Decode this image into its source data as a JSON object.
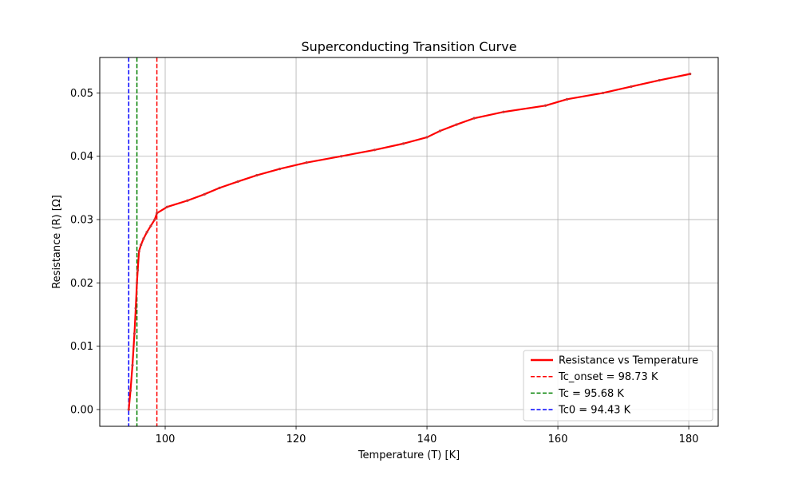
{
  "chart_data": {
    "type": "line",
    "title": "Superconducting Transition Curve",
    "xlabel": "Temperature (T) [K]",
    "ylabel": "Resistance (R) [Ω]",
    "xlim": [
      90,
      184.5
    ],
    "ylim": [
      -0.00265,
      0.0556
    ],
    "xticks": [
      100,
      120,
      140,
      160,
      180
    ],
    "xtick_labels": [
      "100",
      "120",
      "140",
      "160",
      "180"
    ],
    "yticks": [
      0.0,
      0.01,
      0.02,
      0.03,
      0.04,
      0.05
    ],
    "ytick_labels": [
      "0.00",
      "0.01",
      "0.02",
      "0.03",
      "0.04",
      "0.05"
    ],
    "grid": true,
    "legend_position": "lower-right",
    "series": [
      {
        "name": "Resistance vs Temperature",
        "color": "#ff0000",
        "style": "solid-with-point-markers",
        "x": [
          94.43,
          94.7,
          95.0,
          95.3,
          95.5,
          95.68,
          95.8,
          96.0,
          96.3,
          96.7,
          97.2,
          97.8,
          98.4,
          98.73,
          100.3,
          103.4,
          106.0,
          108.3,
          111.1,
          114.0,
          117.5,
          121.6,
          126.9,
          132.0,
          136.4,
          140.0,
          142.0,
          144.5,
          147.2,
          151.7,
          158.1,
          161.4,
          166.9,
          171.2,
          175.5,
          180.2
        ],
        "y": [
          0.0,
          0.003,
          0.007,
          0.012,
          0.016,
          0.02,
          0.022,
          0.025,
          0.026,
          0.027,
          0.028,
          0.029,
          0.03,
          0.031,
          0.032,
          0.033,
          0.034,
          0.035,
          0.036,
          0.037,
          0.038,
          0.039,
          0.04,
          0.041,
          0.042,
          0.043,
          0.044,
          0.045,
          0.046,
          0.047,
          0.048,
          0.049,
          0.05,
          0.051,
          0.052,
          0.053
        ]
      }
    ],
    "vlines": [
      {
        "name": "Tc_onset = 98.73 K",
        "x": 98.73,
        "color": "#ff0000",
        "style": "dashed"
      },
      {
        "name": "Tc = 95.68 K",
        "x": 95.68,
        "color": "#008000",
        "style": "dashed"
      },
      {
        "name": "Tc0 = 94.43 K",
        "x": 94.43,
        "color": "#0000ff",
        "style": "dashed"
      }
    ]
  }
}
